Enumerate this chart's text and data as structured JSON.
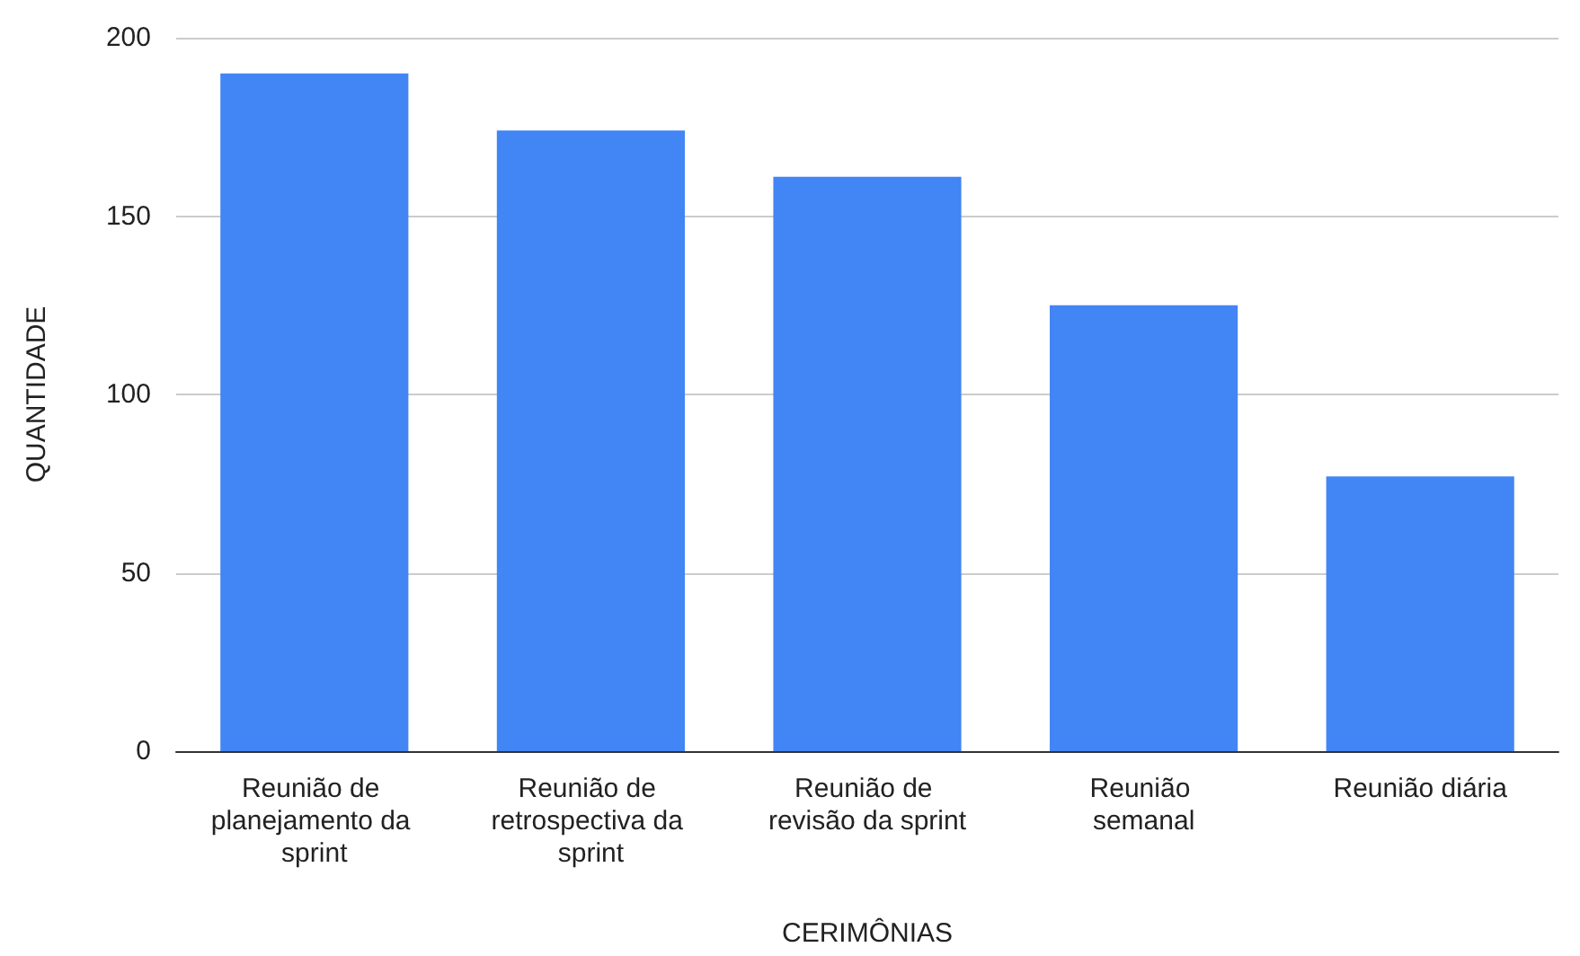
{
  "chart_data": {
    "type": "bar",
    "xlabel": "CERIMÔNIAS",
    "ylabel": "QUANTIDADE",
    "categories": [
      "Reunião de planejamento da sprint",
      "Reunião de retrospectiva da sprint",
      "Reunião de revisão da sprint",
      "Reunião semanal",
      "Reunião diária"
    ],
    "values": [
      190,
      174,
      161,
      125,
      77
    ],
    "color": "#4285f4",
    "ylim": [
      0,
      200
    ],
    "yticks": [
      0,
      50,
      100,
      150,
      200
    ],
    "grid": "y"
  }
}
